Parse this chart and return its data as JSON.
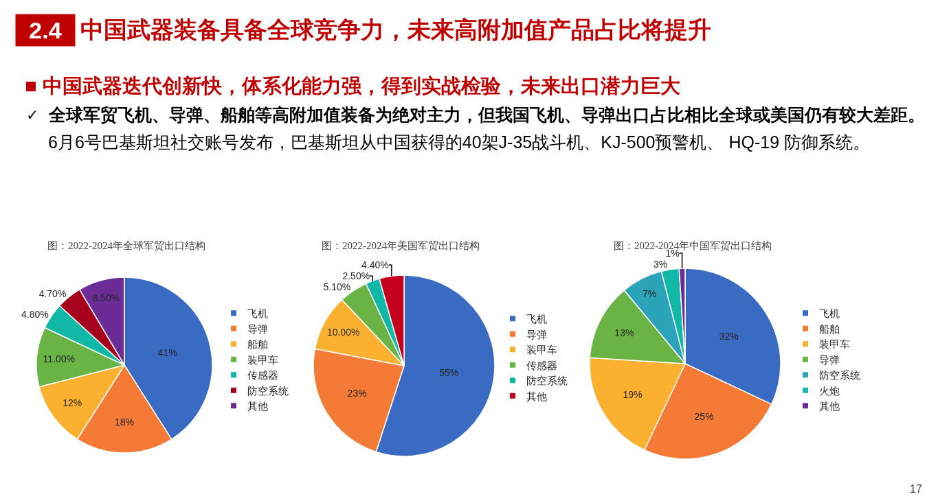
{
  "chart_data": [
    {
      "type": "pie",
      "title": "图：2022-2024年全球军贸出口结构",
      "categories": [
        "飞机",
        "导弹",
        "船舶",
        "装甲车",
        "传感器",
        "防空系统",
        "其他"
      ],
      "values": [
        41,
        18,
        12,
        11,
        4.8,
        4.7,
        8.5
      ],
      "colors": [
        "#3a6bc3",
        "#f47a35",
        "#fbb12f",
        "#6ab446",
        "#11b8a8",
        "#a6001c",
        "#6b2d95"
      ],
      "value_labels": [
        "41%",
        "18%",
        "12%",
        "11.00%",
        "4.80%",
        "4.70%",
        "8.50%"
      ],
      "legend": "right",
      "annotations": [
        "2.4",
        "中国武器装备具备全球竞争力，未来高附加值产品占比将提升",
        "■ 中国武器迭代创新快，体系化能力强，得到实战检验，未来出口潜力巨大",
        "✓",
        "全球军贸飞机、导弹、船舶等高附加值装备为绝对主力，但我国飞机、导弹出口占比相比全球或美国仍有较大差距。",
        "6月6号巴基斯坦社交账号发布，巴基斯坦从中国获得的40架J-35战斗机、KJ-500预警机、 HQ-19 防御系统。",
        "17"
      ]
    },
    {
      "type": "pie",
      "title": "图：2022-2024年美国军贸出口结构",
      "categories": [
        "飞机",
        "导弹",
        "装甲车",
        "传感器",
        "防空系统",
        "其他"
      ],
      "values": [
        55,
        23,
        10,
        5.1,
        2.5,
        4.4
      ],
      "colors": [
        "#3a6bc3",
        "#f47a35",
        "#fbb12f",
        "#6ab446",
        "#11b8a8",
        "#c4001e"
      ],
      "value_labels": [
        "55%",
        "23%",
        "10.00%",
        "5.10%",
        "2.50%",
        "4.40%"
      ],
      "legend": "right"
    },
    {
      "type": "pie",
      "title": "图：2022-2024年中国军贸出口结构",
      "categories": [
        "飞机",
        "船舶",
        "装甲车",
        "导弹",
        "防空系统",
        "火炮",
        "其他"
      ],
      "values": [
        32,
        25,
        19,
        13,
        7,
        3,
        1
      ],
      "colors": [
        "#3a6bc3",
        "#f47a35",
        "#fbb12f",
        "#6ab446",
        "#2ba3b8",
        "#11b8a8",
        "#6b2d95"
      ],
      "value_labels": [
        "32%",
        "25%",
        "19%",
        "13%",
        "7%",
        "3%",
        "1%"
      ],
      "legend": "right"
    }
  ]
}
